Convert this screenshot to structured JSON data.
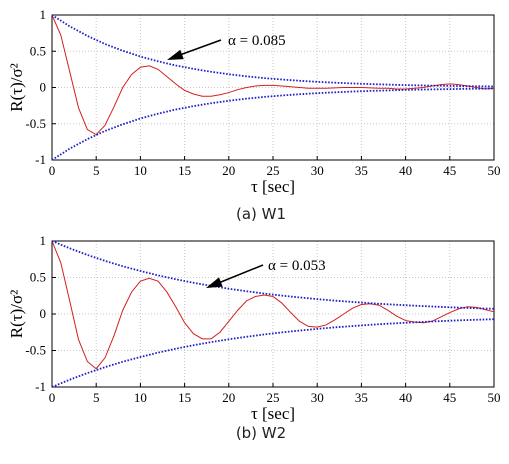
{
  "chart_data": [
    {
      "type": "line",
      "caption": "(a)  W1",
      "xlabel": "τ [sec]",
      "ylabel": "R(τ)/σ²",
      "xlim": [
        0,
        50
      ],
      "ylim": [
        -1,
        1
      ],
      "xticks": [
        0,
        5,
        10,
        15,
        20,
        25,
        30,
        35,
        40,
        45,
        50
      ],
      "yticks": [
        1,
        0.5,
        0,
        -0.5,
        -1
      ],
      "ytick_labels": [
        "1",
        "0.5",
        "0",
        "-0.5",
        "-1"
      ],
      "grid": true,
      "alpha": 0.085,
      "annotation": "α = 0.085",
      "series": [
        {
          "x": [
            0,
            1,
            2,
            3,
            4,
            5,
            6,
            7,
            8,
            9,
            10,
            11,
            12,
            13,
            14,
            15,
            16,
            17,
            18,
            19,
            20,
            21,
            22,
            23,
            24,
            25,
            26,
            27,
            28,
            29,
            30,
            31,
            32,
            33,
            34,
            35,
            36,
            37,
            38,
            39,
            40,
            41,
            42,
            43,
            44,
            45,
            46,
            47,
            48,
            49,
            50
          ],
          "y": [
            1.0,
            0.72,
            0.22,
            -0.28,
            -0.58,
            -0.65,
            -0.52,
            -0.27,
            0.0,
            0.18,
            0.28,
            0.3,
            0.25,
            0.15,
            0.05,
            -0.04,
            -0.09,
            -0.12,
            -0.12,
            -0.1,
            -0.07,
            -0.03,
            0.0,
            0.02,
            0.03,
            0.03,
            0.02,
            0.01,
            0.0,
            -0.01,
            -0.01,
            -0.01,
            -0.005,
            0.0,
            0.0,
            0.0,
            -0.005,
            -0.01,
            -0.01,
            -0.02,
            -0.02,
            -0.01,
            0.0,
            0.02,
            0.04,
            0.05,
            0.04,
            0.02,
            0.0,
            -0.02,
            -0.01
          ]
        },
        {
          "x": [
            0,
            2,
            4,
            6,
            8,
            10,
            12,
            14,
            16,
            18,
            20,
            22,
            24,
            26,
            28,
            30,
            32,
            34,
            36,
            38,
            40,
            42,
            44,
            46,
            48,
            50
          ],
          "y": [
            1.0,
            0.844,
            0.712,
            0.6,
            0.507,
            0.427,
            0.361,
            0.304,
            0.257,
            0.217,
            0.183,
            0.154,
            0.13,
            0.11,
            0.093,
            0.078,
            0.066,
            0.056,
            0.047,
            0.04,
            0.033,
            0.028,
            0.024,
            0.02,
            0.017,
            0.014
          ]
        },
        {
          "x": [
            0,
            2,
            4,
            6,
            8,
            10,
            12,
            14,
            16,
            18,
            20,
            22,
            24,
            26,
            28,
            30,
            32,
            34,
            36,
            38,
            40,
            42,
            44,
            46,
            48,
            50
          ],
          "y": [
            -1.0,
            -0.844,
            -0.712,
            -0.6,
            -0.507,
            -0.427,
            -0.361,
            -0.304,
            -0.257,
            -0.217,
            -0.183,
            -0.154,
            -0.13,
            -0.11,
            -0.093,
            -0.078,
            -0.066,
            -0.056,
            -0.047,
            -0.04,
            -0.033,
            -0.028,
            -0.024,
            -0.02,
            -0.017,
            -0.014
          ]
        }
      ]
    },
    {
      "type": "line",
      "caption": "(b)  W2",
      "xlabel": "τ [sec]",
      "ylabel": "R(τ)/σ²",
      "xlim": [
        0,
        50
      ],
      "ylim": [
        -1,
        1
      ],
      "xticks": [
        0,
        5,
        10,
        15,
        20,
        25,
        30,
        35,
        40,
        45,
        50
      ],
      "yticks": [
        1,
        0.5,
        0,
        -0.5,
        -1
      ],
      "ytick_labels": [
        "1",
        "0.5",
        "0",
        "-0.5",
        "-1"
      ],
      "grid": true,
      "alpha": 0.053,
      "annotation": "α = 0.053",
      "series": [
        {
          "x": [
            0,
            1,
            2,
            3,
            4,
            5,
            6,
            7,
            8,
            9,
            10,
            11,
            12,
            13,
            14,
            15,
            16,
            17,
            18,
            19,
            20,
            21,
            22,
            23,
            24,
            25,
            26,
            27,
            28,
            29,
            30,
            31,
            32,
            33,
            34,
            35,
            36,
            37,
            38,
            39,
            40,
            41,
            42,
            43,
            44,
            45,
            46,
            47,
            48,
            49,
            50
          ],
          "y": [
            1.0,
            0.7,
            0.18,
            -0.35,
            -0.65,
            -0.75,
            -0.6,
            -0.3,
            0.05,
            0.3,
            0.45,
            0.49,
            0.45,
            0.3,
            0.1,
            -0.12,
            -0.27,
            -0.34,
            -0.34,
            -0.25,
            -0.1,
            0.05,
            0.18,
            0.24,
            0.26,
            0.24,
            0.15,
            0.02,
            -0.1,
            -0.17,
            -0.18,
            -0.15,
            -0.08,
            0.0,
            0.08,
            0.13,
            0.14,
            0.12,
            0.05,
            -0.03,
            -0.09,
            -0.11,
            -0.12,
            -0.1,
            -0.04,
            0.02,
            0.07,
            0.1,
            0.09,
            0.06,
            0.03
          ]
        },
        {
          "x": [
            0,
            2,
            4,
            6,
            8,
            10,
            12,
            14,
            16,
            18,
            20,
            22,
            24,
            26,
            28,
            30,
            32,
            34,
            36,
            38,
            40,
            42,
            44,
            46,
            48,
            50
          ],
          "y": [
            1.0,
            0.9,
            0.809,
            0.728,
            0.654,
            0.589,
            0.529,
            0.476,
            0.428,
            0.385,
            0.346,
            0.312,
            0.28,
            0.252,
            0.227,
            0.204,
            0.183,
            0.165,
            0.148,
            0.133,
            0.12,
            0.108,
            0.097,
            0.087,
            0.079,
            0.071
          ]
        },
        {
          "x": [
            0,
            2,
            4,
            6,
            8,
            10,
            12,
            14,
            16,
            18,
            20,
            22,
            24,
            26,
            28,
            30,
            32,
            34,
            36,
            38,
            40,
            42,
            44,
            46,
            48,
            50
          ],
          "y": [
            -1.0,
            -0.9,
            -0.809,
            -0.728,
            -0.654,
            -0.589,
            -0.529,
            -0.476,
            -0.428,
            -0.385,
            -0.346,
            -0.312,
            -0.28,
            -0.252,
            -0.227,
            -0.204,
            -0.183,
            -0.165,
            -0.148,
            -0.133,
            -0.12,
            -0.108,
            -0.097,
            -0.087,
            -0.079,
            -0.071
          ]
        }
      ]
    }
  ]
}
